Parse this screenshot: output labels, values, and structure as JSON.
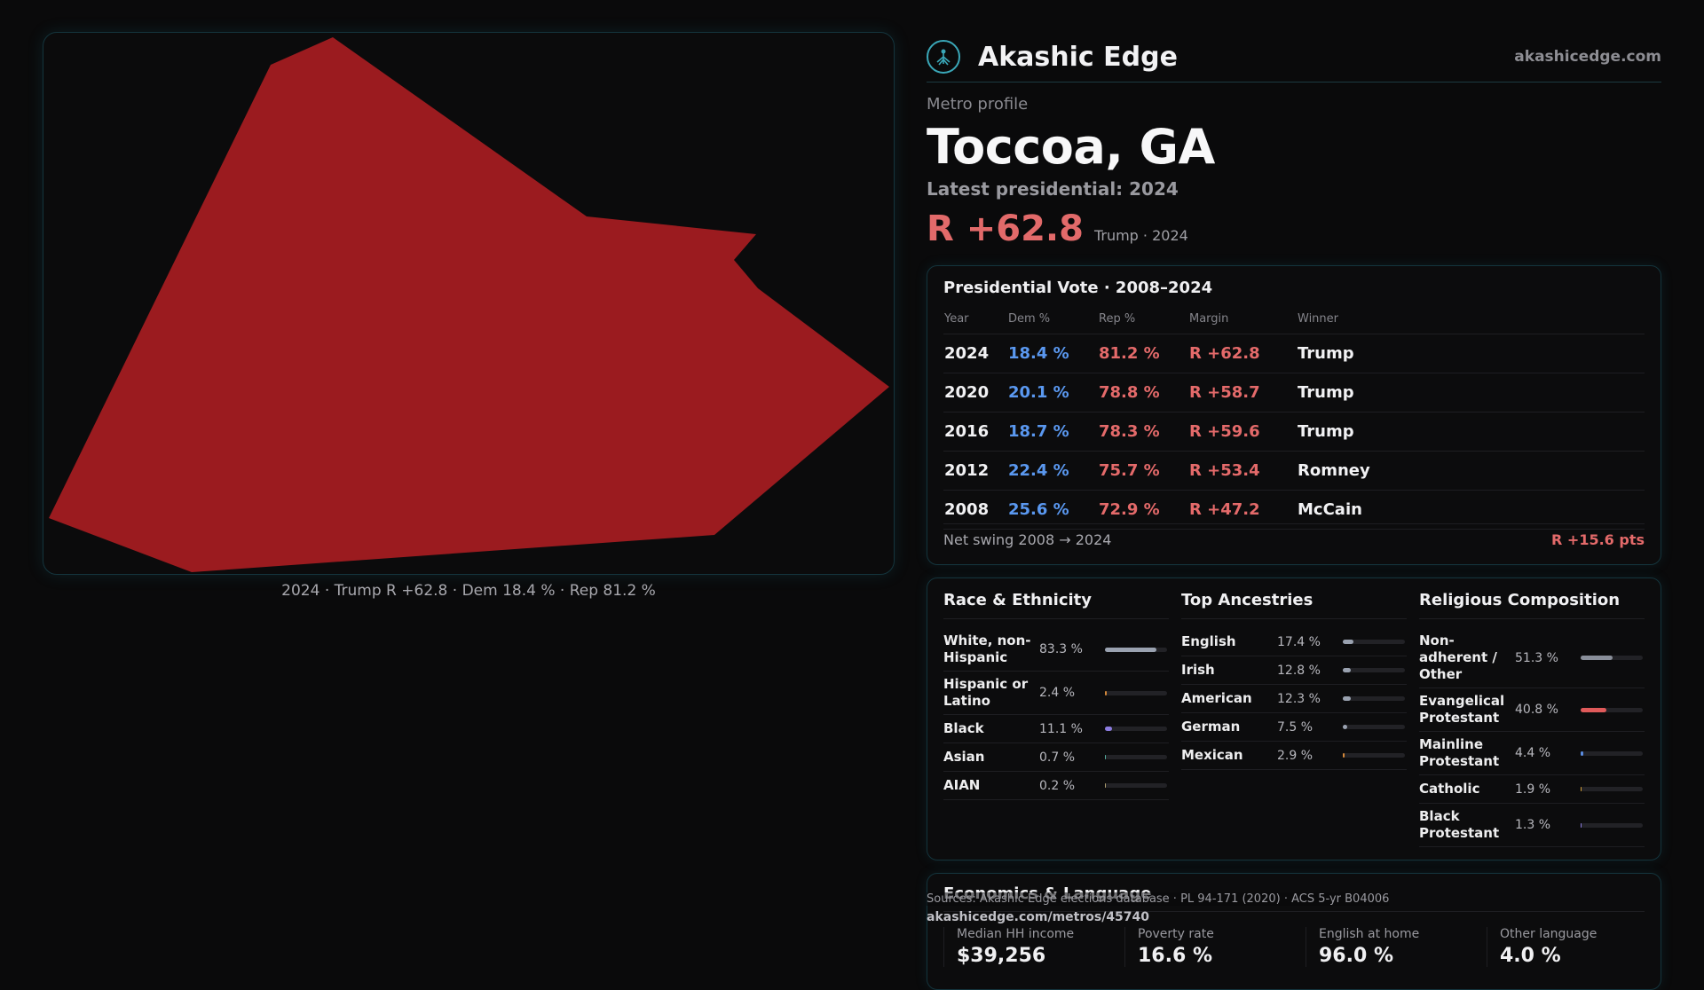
{
  "map": {
    "caption": "2024 · Trump R +62.8 · Dem 18.4 % · Rep 81.2 %",
    "fill_color": "#9b1b1f",
    "border_color": "#14343c"
  },
  "brand": {
    "name": "Akashic Edge",
    "url": "akashicedge.com",
    "logo_icon": "tree-of-life-icon",
    "accent_color": "#3aa7b8"
  },
  "profile": {
    "eyebrow": "Metro profile",
    "city": "Toccoa, GA",
    "latest_label": "Latest presidential: 2024",
    "margin": "R +62.8",
    "margin_sub": "Trump · 2024",
    "rep_color": "#e26a6a",
    "dem_color": "#5a98f0"
  },
  "vote": {
    "title": "Presidential Vote · 2008–2024",
    "headers": [
      "Year",
      "Dem %",
      "Rep %",
      "Margin",
      "Winner"
    ],
    "rows": [
      {
        "year": "2024",
        "dem": "18.4 %",
        "rep": "81.2 %",
        "margin": "R +62.8",
        "winner": "Trump"
      },
      {
        "year": "2020",
        "dem": "20.1 %",
        "rep": "78.8 %",
        "margin": "R +58.7",
        "winner": "Trump"
      },
      {
        "year": "2016",
        "dem": "18.7 %",
        "rep": "78.3 %",
        "margin": "R +59.6",
        "winner": "Trump"
      },
      {
        "year": "2012",
        "dem": "22.4 %",
        "rep": "75.7 %",
        "margin": "R +53.4",
        "winner": "Romney"
      },
      {
        "year": "2008",
        "dem": "25.6 %",
        "rep": "72.9 %",
        "margin": "R +47.2",
        "winner": "McCain"
      }
    ],
    "net_label": "Net swing 2008 → 2024",
    "net_value": "R +15.6 pts"
  },
  "race": {
    "title": "Race & Ethnicity",
    "rows": [
      {
        "label": "White, non-Hispanic",
        "value": "83.3 %",
        "share": 0.833,
        "color": "#9aa2b0"
      },
      {
        "label": "Hispanic or Latino",
        "value": "2.4 %",
        "share": 0.024,
        "color": "#d4883a"
      },
      {
        "label": "Black",
        "value": "11.1 %",
        "share": 0.111,
        "color": "#8c7ce0"
      },
      {
        "label": "Asian",
        "value": "0.7 %",
        "share": 0.007,
        "color": "#56b0a0"
      },
      {
        "label": "AIAN",
        "value": "0.2 %",
        "share": 0.002,
        "color": "#b0a070"
      }
    ]
  },
  "ancestry": {
    "title": "Top Ancestries",
    "rows": [
      {
        "label": "English",
        "value": "17.4 %",
        "share": 0.174,
        "color": "#9aa2b0"
      },
      {
        "label": "Irish",
        "value": "12.8 %",
        "share": 0.128,
        "color": "#9aa2b0"
      },
      {
        "label": "American",
        "value": "12.3 %",
        "share": 0.123,
        "color": "#9aa2b0"
      },
      {
        "label": "German",
        "value": "7.5 %",
        "share": 0.075,
        "color": "#9aa2b0"
      },
      {
        "label": "Mexican",
        "value": "2.9 %",
        "share": 0.029,
        "color": "#d4883a"
      }
    ]
  },
  "religion": {
    "title": "Religious Composition",
    "rows": [
      {
        "label": "Non-adherent / Other",
        "value": "51.3 %",
        "share": 0.513,
        "color": "#8a8f9a"
      },
      {
        "label": "Evangelical Protestant",
        "value": "40.8 %",
        "share": 0.408,
        "color": "#e05a5a"
      },
      {
        "label": "Mainline Protestant",
        "value": "4.4 %",
        "share": 0.044,
        "color": "#5a8ce0"
      },
      {
        "label": "Catholic",
        "value": "1.9 %",
        "share": 0.019,
        "color": "#d4a03a"
      },
      {
        "label": "Black Protestant",
        "value": "1.3 %",
        "share": 0.013,
        "color": "#8c7ce0"
      }
    ]
  },
  "economics": {
    "title": "Economics & Language",
    "cells": [
      {
        "label": "Median HH income",
        "value": "$39,256"
      },
      {
        "label": "Poverty rate",
        "value": "16.6 %"
      },
      {
        "label": "English at home",
        "value": "96.0 %"
      },
      {
        "label": "Other language",
        "value": "4.0 %"
      }
    ]
  },
  "footer": {
    "sources": "Sources: Akashic Edge elections database · PL 94-171 (2020) · ACS 5-yr B04006",
    "permalink": "akashicedge.com/metros/45740"
  }
}
